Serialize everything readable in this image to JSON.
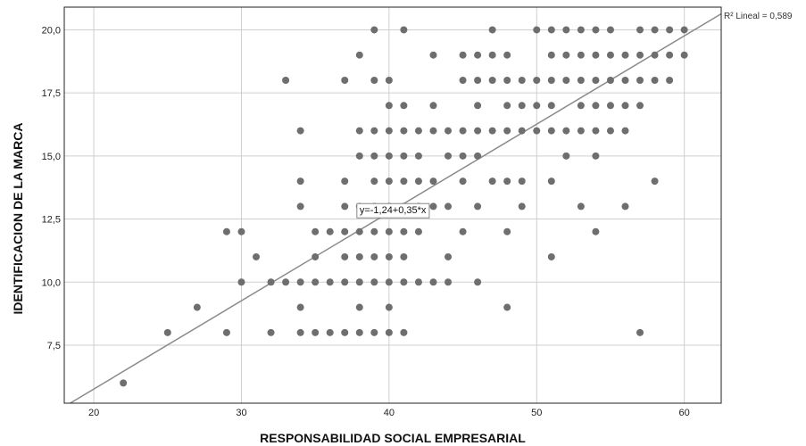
{
  "chart_data": {
    "type": "scatter",
    "xlabel": "RESPONSABILIDAD SOCIAL EMPRESARIAL",
    "ylabel": "IDENTIFICACION DE LA MARCA",
    "xlim": [
      18,
      62.5
    ],
    "ylim": [
      5.2,
      20.9
    ],
    "x_ticks": [
      20,
      30,
      40,
      50,
      60
    ],
    "x_tick_labels": [
      "20",
      "30",
      "40",
      "50",
      "60"
    ],
    "y_ticks": [
      7.5,
      10.0,
      12.5,
      15.0,
      17.5,
      20.0
    ],
    "y_tick_labels": [
      "7,5",
      "10,0",
      "12,5",
      "15,0",
      "17,5",
      "20,0"
    ],
    "grid": true,
    "marker_color": "#6e6e6e",
    "fit_line": {
      "intercept": -1.24,
      "slope": 0.35,
      "equation_label": "y=-1,24+0,35*x",
      "r2_label": "R² Lineal = 0,589",
      "color": "#8a8a8a"
    },
    "points": [
      [
        22,
        6
      ],
      [
        25,
        8
      ],
      [
        27,
        9
      ],
      [
        29,
        8
      ],
      [
        29,
        12
      ],
      [
        30,
        10
      ],
      [
        30,
        12
      ],
      [
        31,
        11
      ],
      [
        32,
        8
      ],
      [
        32,
        10
      ],
      [
        33,
        10
      ],
      [
        33,
        18
      ],
      [
        34,
        8
      ],
      [
        34,
        9
      ],
      [
        34,
        10
      ],
      [
        34,
        13
      ],
      [
        34,
        14
      ],
      [
        34,
        16
      ],
      [
        35,
        8
      ],
      [
        35,
        10
      ],
      [
        35,
        11
      ],
      [
        35,
        12
      ],
      [
        36,
        8
      ],
      [
        36,
        10
      ],
      [
        36,
        12
      ],
      [
        37,
        8
      ],
      [
        37,
        10
      ],
      [
        37,
        11
      ],
      [
        37,
        12
      ],
      [
        37,
        13
      ],
      [
        37,
        14
      ],
      [
        37,
        18
      ],
      [
        38,
        8
      ],
      [
        38,
        9
      ],
      [
        38,
        10
      ],
      [
        38,
        11
      ],
      [
        38,
        12
      ],
      [
        38,
        13
      ],
      [
        38,
        15
      ],
      [
        38,
        16
      ],
      [
        38,
        19
      ],
      [
        39,
        8
      ],
      [
        39,
        10
      ],
      [
        39,
        11
      ],
      [
        39,
        12
      ],
      [
        39,
        13
      ],
      [
        39,
        14
      ],
      [
        39,
        15
      ],
      [
        39,
        16
      ],
      [
        39,
        18
      ],
      [
        39,
        20
      ],
      [
        40,
        8
      ],
      [
        40,
        9
      ],
      [
        40,
        10
      ],
      [
        40,
        11
      ],
      [
        40,
        12
      ],
      [
        40,
        13
      ],
      [
        40,
        14
      ],
      [
        40,
        15
      ],
      [
        40,
        16
      ],
      [
        40,
        17
      ],
      [
        40,
        18
      ],
      [
        41,
        8
      ],
      [
        41,
        10
      ],
      [
        41,
        11
      ],
      [
        41,
        12
      ],
      [
        41,
        13
      ],
      [
        41,
        14
      ],
      [
        41,
        15
      ],
      [
        41,
        16
      ],
      [
        41,
        17
      ],
      [
        41,
        20
      ],
      [
        42,
        10
      ],
      [
        42,
        12
      ],
      [
        42,
        13
      ],
      [
        42,
        14
      ],
      [
        42,
        15
      ],
      [
        42,
        16
      ],
      [
        43,
        10
      ],
      [
        43,
        13
      ],
      [
        43,
        14
      ],
      [
        43,
        16
      ],
      [
        43,
        17
      ],
      [
        43,
        19
      ],
      [
        44,
        10
      ],
      [
        44,
        11
      ],
      [
        44,
        13
      ],
      [
        44,
        15
      ],
      [
        44,
        16
      ],
      [
        45,
        12
      ],
      [
        45,
        14
      ],
      [
        45,
        15
      ],
      [
        45,
        16
      ],
      [
        45,
        18
      ],
      [
        45,
        19
      ],
      [
        46,
        10
      ],
      [
        46,
        13
      ],
      [
        46,
        15
      ],
      [
        46,
        16
      ],
      [
        46,
        17
      ],
      [
        46,
        18
      ],
      [
        46,
        19
      ],
      [
        47,
        14
      ],
      [
        47,
        16
      ],
      [
        47,
        18
      ],
      [
        47,
        19
      ],
      [
        47,
        20
      ],
      [
        48,
        9
      ],
      [
        48,
        12
      ],
      [
        48,
        14
      ],
      [
        48,
        16
      ],
      [
        48,
        17
      ],
      [
        48,
        18
      ],
      [
        48,
        19
      ],
      [
        49,
        13
      ],
      [
        49,
        14
      ],
      [
        49,
        16
      ],
      [
        49,
        17
      ],
      [
        49,
        18
      ],
      [
        50,
        16
      ],
      [
        50,
        17
      ],
      [
        50,
        18
      ],
      [
        50,
        20
      ],
      [
        51,
        11
      ],
      [
        51,
        14
      ],
      [
        51,
        16
      ],
      [
        51,
        17
      ],
      [
        51,
        18
      ],
      [
        51,
        19
      ],
      [
        51,
        20
      ],
      [
        52,
        15
      ],
      [
        52,
        16
      ],
      [
        52,
        18
      ],
      [
        52,
        19
      ],
      [
        52,
        20
      ],
      [
        53,
        13
      ],
      [
        53,
        16
      ],
      [
        53,
        17
      ],
      [
        53,
        18
      ],
      [
        53,
        19
      ],
      [
        53,
        20
      ],
      [
        54,
        12
      ],
      [
        54,
        15
      ],
      [
        54,
        16
      ],
      [
        54,
        17
      ],
      [
        54,
        18
      ],
      [
        54,
        19
      ],
      [
        54,
        20
      ],
      [
        55,
        16
      ],
      [
        55,
        17
      ],
      [
        55,
        18
      ],
      [
        55,
        19
      ],
      [
        55,
        20
      ],
      [
        56,
        13
      ],
      [
        56,
        16
      ],
      [
        56,
        17
      ],
      [
        56,
        18
      ],
      [
        56,
        19
      ],
      [
        57,
        8
      ],
      [
        57,
        17
      ],
      [
        57,
        18
      ],
      [
        57,
        19
      ],
      [
        57,
        20
      ],
      [
        58,
        14
      ],
      [
        58,
        18
      ],
      [
        58,
        19
      ],
      [
        58,
        20
      ],
      [
        59,
        18
      ],
      [
        59,
        19
      ],
      [
        59,
        20
      ],
      [
        60,
        19
      ],
      [
        60,
        20
      ]
    ]
  }
}
